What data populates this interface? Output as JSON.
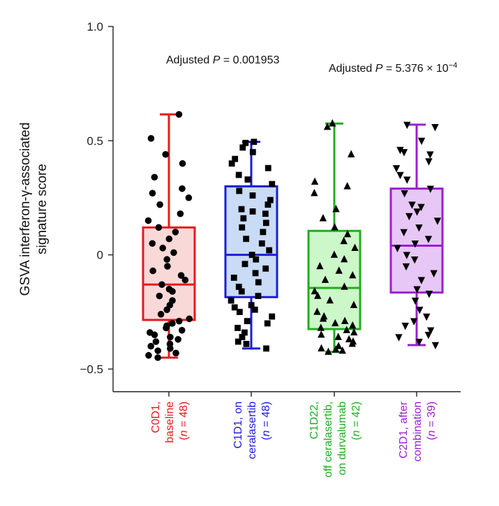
{
  "chart_data": {
    "type": "box",
    "ylabel_line1": "GSVA interferon-γ-associated",
    "ylabel_line2": "signature score",
    "ylim": [
      -0.6,
      1.0
    ],
    "yticks": [
      {
        "value": 1.0,
        "label": "1.0"
      },
      {
        "value": 0.5,
        "label": "0.5"
      },
      {
        "value": 0.0,
        "label": "0"
      },
      {
        "value": -0.5,
        "label": "−0.5"
      }
    ],
    "annotations": [
      {
        "prefix": "Adjusted ",
        "p": "P",
        "text": " = 0.001953",
        "sup": ""
      },
      {
        "prefix": "Adjusted ",
        "p": "P",
        "text": " = 5.376 × 10",
        "sup": "−4"
      }
    ],
    "groups": [
      {
        "name": "C0D1",
        "label_lines": [
          [
            "C0D1,"
          ],
          [
            "baseline"
          ],
          [
            "(",
            {
              "i": "n"
            },
            " = 48)"
          ]
        ],
        "color": "#e8191c",
        "fill": "#f9d9d8",
        "marker": "circle",
        "min": -0.45,
        "q1": -0.285,
        "median": -0.13,
        "q3": 0.12,
        "max": 0.615,
        "points": [
          0.615,
          0.51,
          0.44,
          0.4,
          0.34,
          0.29,
          0.27,
          0.25,
          0.22,
          0.18,
          0.15,
          0.12,
          0.1,
          0.07,
          0.05,
          0.03,
          0.01,
          -0.02,
          -0.05,
          -0.07,
          -0.09,
          -0.11,
          -0.13,
          -0.15,
          -0.16,
          -0.18,
          -0.2,
          -0.22,
          -0.24,
          -0.26,
          -0.28,
          -0.29,
          -0.3,
          -0.31,
          -0.32,
          -0.33,
          -0.34,
          -0.35,
          -0.36,
          -0.37,
          -0.38,
          -0.39,
          -0.4,
          -0.41,
          -0.42,
          -0.43,
          -0.44,
          -0.45
        ]
      },
      {
        "name": "C1D1",
        "label_lines": [
          [
            "C1D1, on"
          ],
          [
            "ceralasertib"
          ],
          [
            "(",
            {
              "i": "n"
            },
            " = 48)"
          ]
        ],
        "color": "#1c1cd6",
        "fill": "#c9dbf5",
        "marker": "square",
        "min": -0.41,
        "q1": -0.185,
        "median": 0.0,
        "q3": 0.3,
        "max": 0.495,
        "points": [
          0.495,
          0.49,
          0.47,
          0.45,
          0.42,
          0.4,
          0.38,
          0.35,
          0.33,
          0.31,
          0.28,
          0.26,
          0.24,
          0.22,
          0.2,
          0.19,
          0.18,
          0.16,
          0.14,
          0.12,
          0.1,
          0.07,
          0.05,
          0.02,
          0.0,
          -0.02,
          -0.04,
          -0.06,
          -0.08,
          -0.1,
          -0.12,
          -0.14,
          -0.16,
          -0.18,
          -0.2,
          -0.22,
          -0.23,
          -0.24,
          -0.25,
          -0.27,
          -0.29,
          -0.3,
          -0.32,
          -0.34,
          -0.36,
          -0.38,
          -0.39,
          -0.41
        ]
      },
      {
        "name": "C1D22",
        "label_lines": [
          [
            "C1D22,"
          ],
          [
            "off ceralasertib,"
          ],
          [
            "on durvalumab"
          ],
          [
            "(",
            {
              "i": "n"
            },
            " = 42)"
          ]
        ],
        "color": "#1fae1f",
        "fill": "#ccf7c9",
        "marker": "triangle",
        "min": -0.425,
        "q1": -0.325,
        "median": -0.145,
        "q3": 0.105,
        "max": 0.575,
        "points": [
          0.575,
          0.56,
          0.44,
          0.32,
          0.3,
          0.27,
          0.2,
          0.16,
          0.12,
          0.09,
          0.06,
          0.03,
          0.0,
          -0.02,
          -0.05,
          -0.07,
          -0.09,
          -0.11,
          -0.14,
          -0.16,
          -0.18,
          -0.2,
          -0.22,
          -0.25,
          -0.27,
          -0.28,
          -0.29,
          -0.3,
          -0.31,
          -0.32,
          -0.33,
          -0.34,
          -0.35,
          -0.36,
          -0.37,
          -0.38,
          -0.39,
          -0.4,
          -0.41,
          -0.415,
          -0.42,
          -0.425
        ]
      },
      {
        "name": "C2D1",
        "label_lines": [
          [
            "C2D1, after"
          ],
          [
            "combination"
          ],
          [
            "(",
            {
              "i": "n"
            },
            " = 39)"
          ]
        ],
        "color": "#9a1fd0",
        "fill": "#e6c7f5",
        "marker": "triangle-down",
        "min": -0.395,
        "q1": -0.165,
        "median": 0.04,
        "q3": 0.29,
        "max": 0.57,
        "points": [
          0.57,
          0.56,
          0.5,
          0.46,
          0.45,
          0.44,
          0.41,
          0.38,
          0.35,
          0.33,
          0.29,
          0.27,
          0.22,
          0.21,
          0.19,
          0.17,
          0.15,
          0.12,
          0.1,
          0.07,
          0.05,
          0.03,
          0.0,
          -0.02,
          -0.05,
          -0.08,
          -0.11,
          -0.15,
          -0.17,
          -0.2,
          -0.24,
          -0.27,
          -0.29,
          -0.31,
          -0.33,
          -0.35,
          -0.36,
          -0.38,
          -0.395
        ]
      }
    ]
  }
}
